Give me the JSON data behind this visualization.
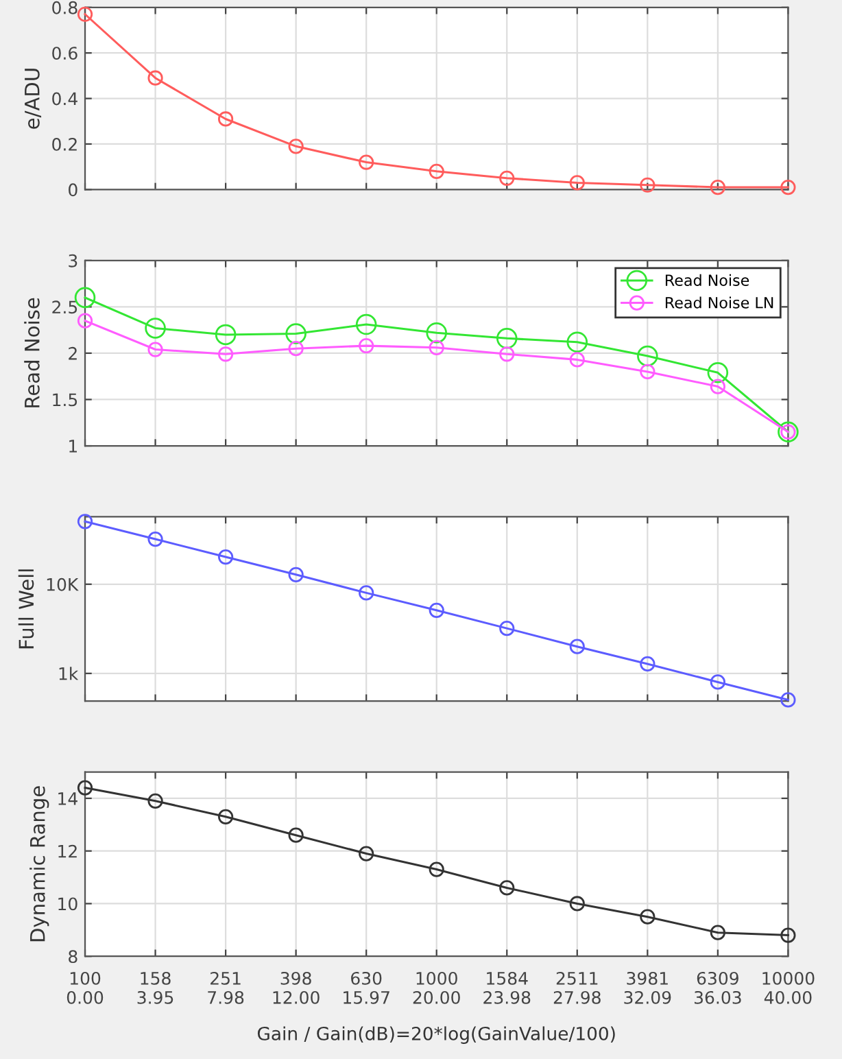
{
  "chart_data": [
    {
      "type": "line",
      "ylabel": "e/ADU",
      "categories": [
        null,
        null,
        null,
        null,
        null,
        null,
        null,
        null,
        null,
        null,
        null
      ],
      "ylim": [
        0,
        0.8
      ],
      "yticks": [
        0,
        0.2,
        0.4,
        0.6,
        0.8
      ],
      "tick_labels": "y",
      "grid": true,
      "marker": "circle",
      "series": [
        {
          "color": "#ff5c5c",
          "values": [
            0.77,
            0.49,
            0.31,
            0.19,
            0.12,
            0.08,
            0.05,
            0.03,
            0.02,
            0.01,
            0.01
          ]
        }
      ]
    },
    {
      "type": "line",
      "ylabel": "Read Noise",
      "categories": [
        null,
        null,
        null,
        null,
        null,
        null,
        null,
        null,
        null,
        null,
        null
      ],
      "ylim": [
        1,
        3
      ],
      "yticks": [
        1,
        1.5,
        2,
        2.5,
        3
      ],
      "tick_labels": "y",
      "grid": true,
      "marker": "circle",
      "legend": "top right",
      "series": [
        {
          "name": "Read Noise",
          "color": "#33e633",
          "values": [
            2.6,
            2.27,
            2.2,
            2.21,
            2.31,
            2.22,
            2.16,
            2.12,
            1.97,
            1.79,
            1.15
          ]
        },
        {
          "name": "Read Noise LN",
          "color": "#ff5cff",
          "values": [
            2.35,
            2.04,
            1.99,
            2.05,
            2.08,
            2.06,
            1.99,
            1.93,
            1.8,
            1.64,
            1.15
          ]
        }
      ]
    },
    {
      "type": "line",
      "ylabel": "Full Well",
      "log": "y",
      "categories": [
        null,
        null,
        null,
        null,
        null,
        null,
        null,
        null,
        null,
        null,
        null
      ],
      "ylim": [
        490,
        57000
      ],
      "yticks": [
        {
          "value": 1000,
          "label": "1k"
        },
        {
          "value": 10000,
          "label": "10K"
        }
      ],
      "tick_labels": "y",
      "grid": true,
      "marker": "circle",
      "series": [
        {
          "color": "#5c5cff",
          "values": [
            50500,
            32000,
            20200,
            12800,
            8000,
            5100,
            3200,
            2000,
            1280,
            800,
            505
          ]
        }
      ]
    },
    {
      "type": "line",
      "ylabel": "Dynamic Range",
      "xlabel": "Gain / Gain(dB)=20*log(GainValue/100)",
      "categories": [
        "100\n0.00",
        "158\n3.95",
        "251\n7.98",
        "398\n12.00",
        "630\n15.97",
        "1000\n20.00",
        "1584\n23.98",
        "2511\n27.98",
        "3981\n32.09",
        "6309\n36.03",
        "10000\n40.00"
      ],
      "ylim": [
        8,
        15
      ],
      "yticks": [
        8,
        10,
        12,
        14
      ],
      "grid": true,
      "marker": "circle",
      "series": [
        {
          "color": "#333333",
          "values": [
            14.4,
            13.9,
            13.3,
            12.6,
            11.9,
            11.3,
            10.6,
            10.0,
            9.5,
            8.9,
            8.8
          ]
        }
      ]
    }
  ]
}
